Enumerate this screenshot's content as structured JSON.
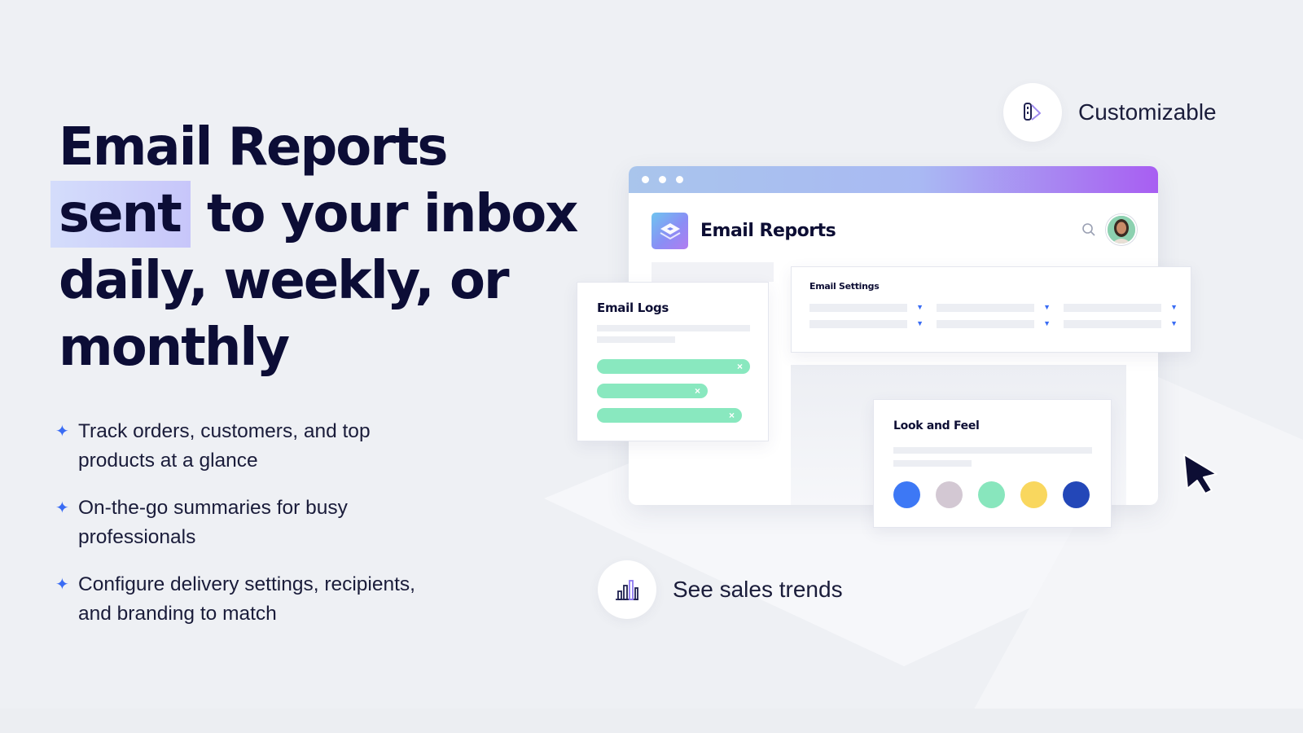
{
  "headline": {
    "line1": "Email Reports",
    "highlight": "sent",
    "line2_rest": " to your inbox",
    "line3": "daily, weekly, or",
    "line4": "monthly"
  },
  "bullets": [
    {
      "icon": "sparkle-icon",
      "line1": "Track orders, customers, and top",
      "line2": "products at a glance"
    },
    {
      "icon": "sparkle-icon",
      "line1": "On-the-go summaries for busy",
      "line2": "professionals"
    },
    {
      "icon": "sparkle-icon",
      "line1": "Configure delivery settings, recipients,",
      "line2": "and branding to match"
    }
  ],
  "features": {
    "customizable": {
      "icon": "palette-brush-icon",
      "label": "Customizable"
    },
    "sales_trends": {
      "icon": "bar-chart-icon",
      "label": "See sales trends"
    }
  },
  "mock_app": {
    "title": "Email Reports",
    "icons": {
      "search": "search-icon",
      "avatar": "user-avatar"
    },
    "email_logs": {
      "title": "Email Logs"
    },
    "email_settings": {
      "title": "Email Settings"
    },
    "look_and_feel": {
      "title": "Look and Feel",
      "swatches": [
        "#3d78f5",
        "#d3c8d3",
        "#88e6bd",
        "#f9d75e",
        "#2347b8"
      ]
    }
  },
  "colors": {
    "accent_blue": "#3a6cf4",
    "highlight": "#c9d3fb",
    "pill_green": "#89e8bf",
    "text_dark": "#0c0d36"
  }
}
